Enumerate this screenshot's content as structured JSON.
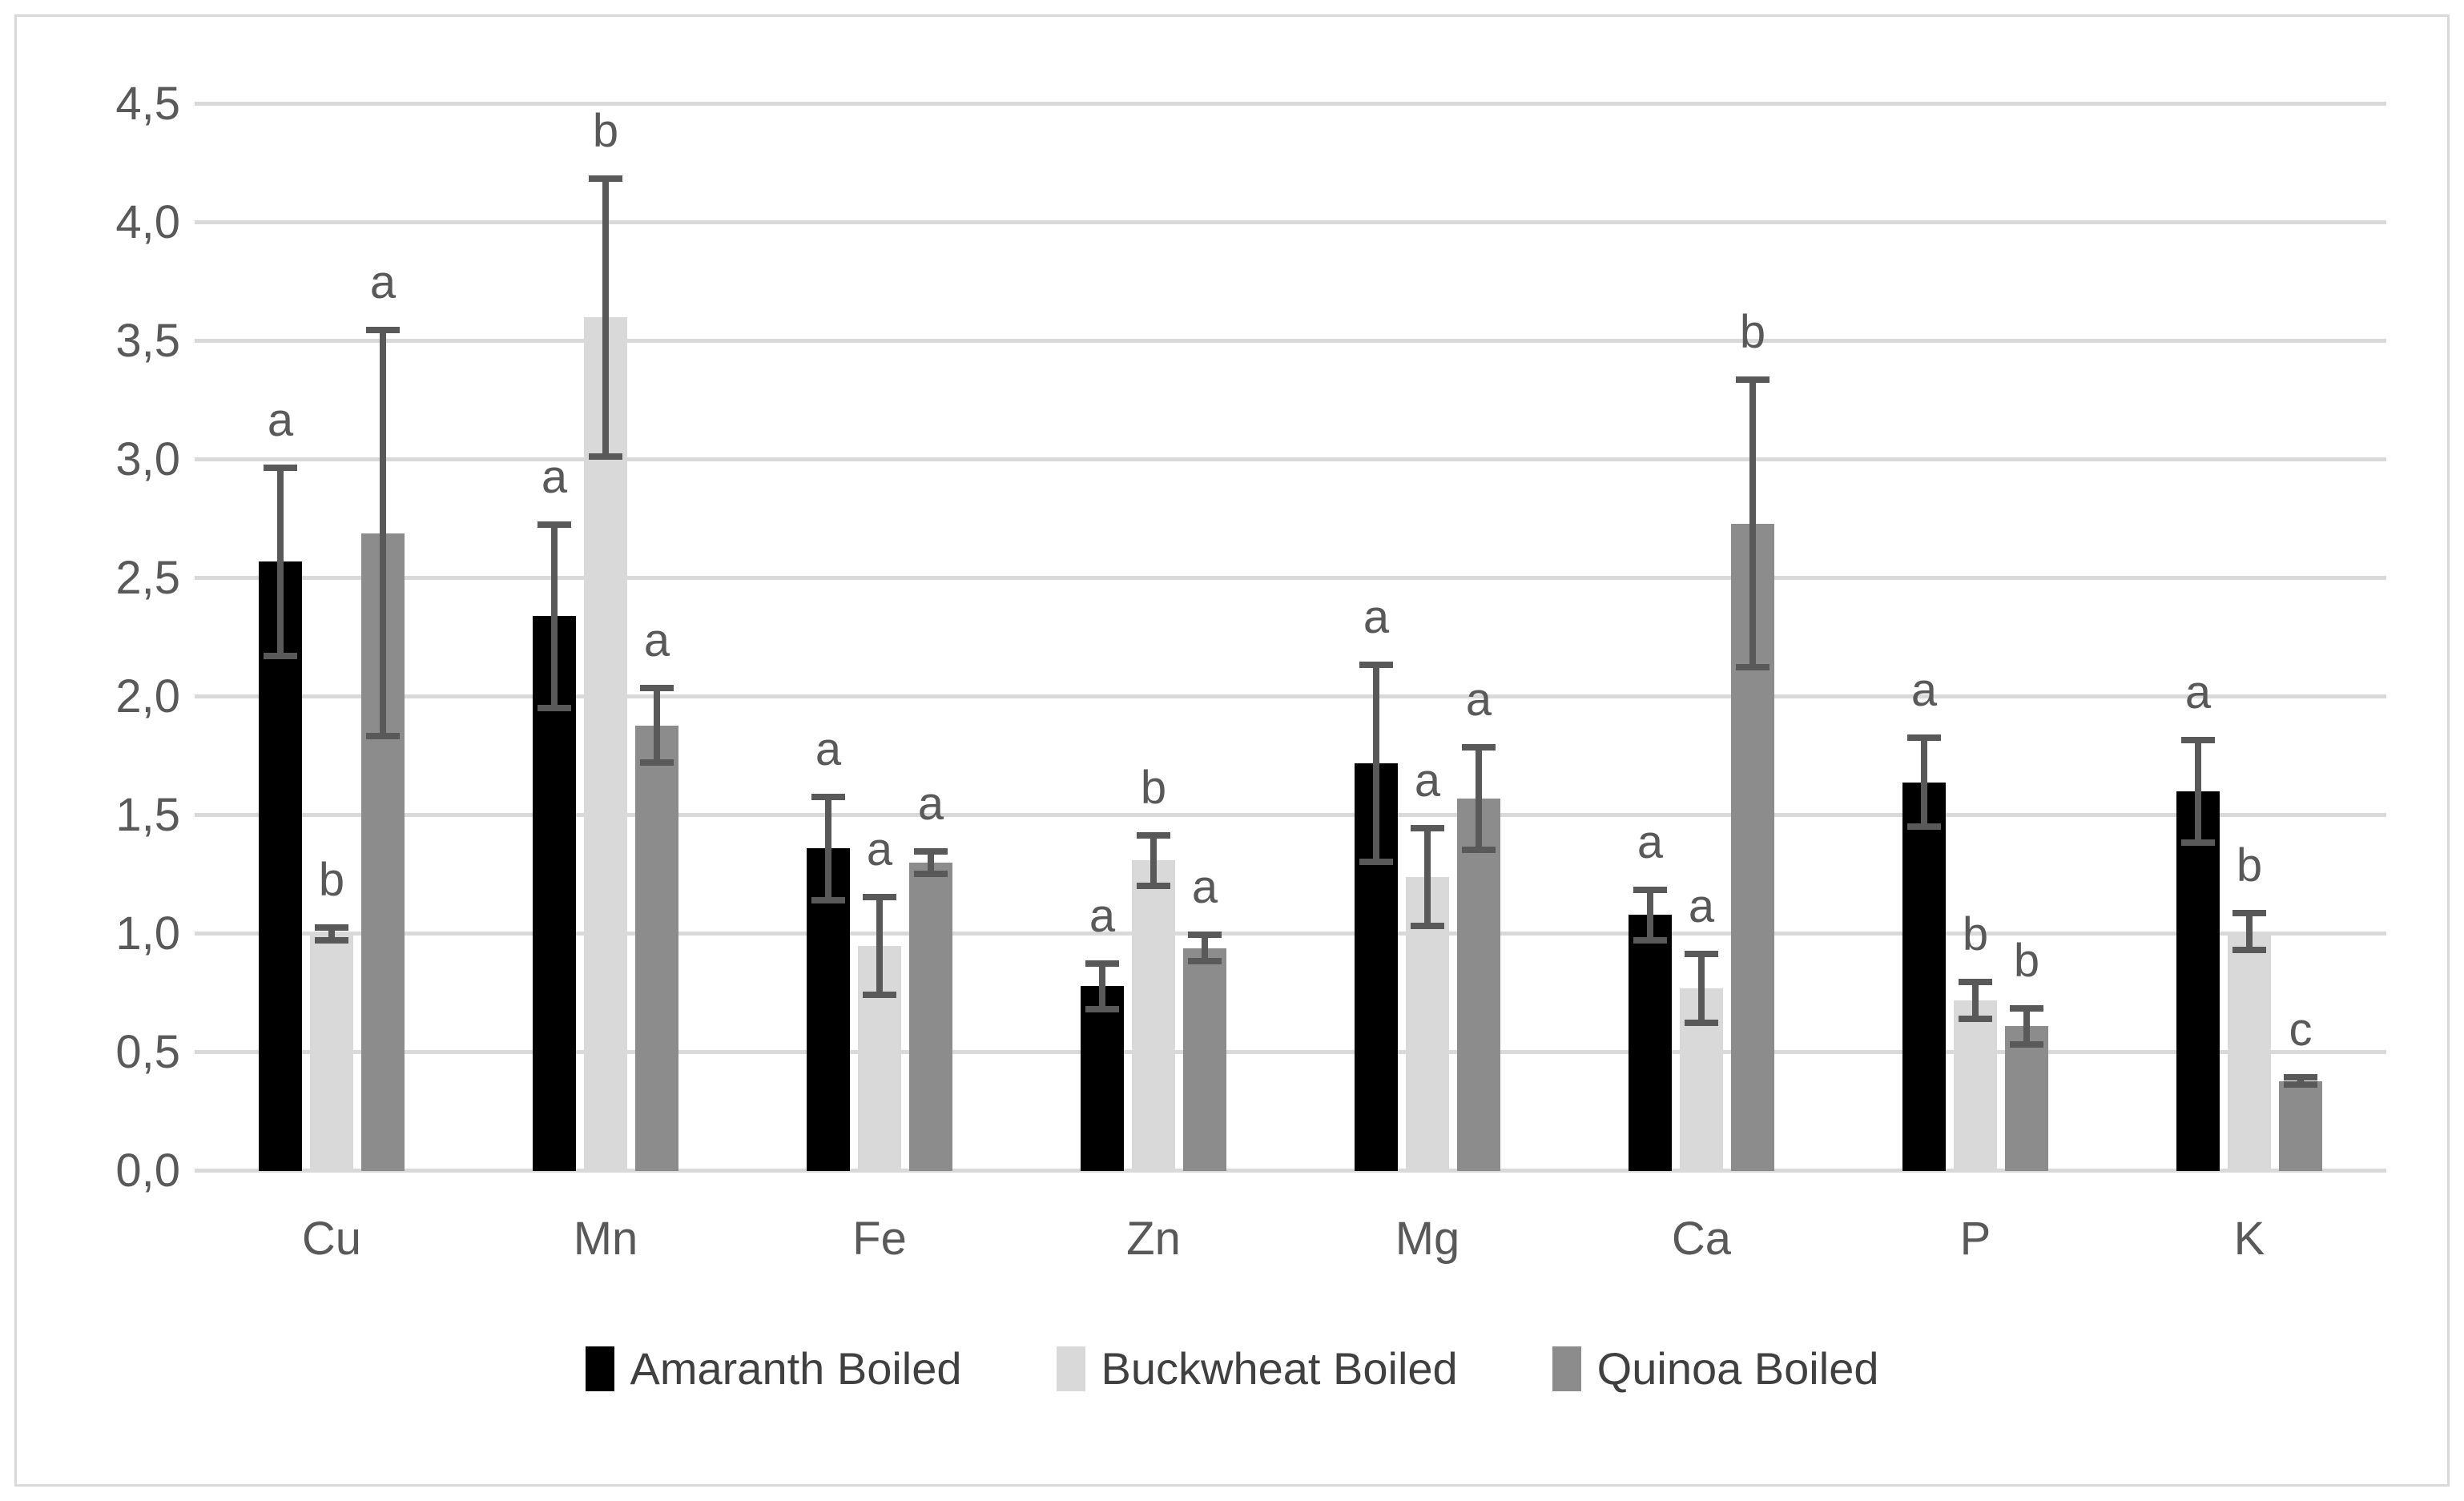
{
  "chart_data": {
    "type": "bar",
    "title": "",
    "xlabel": "",
    "ylabel": "",
    "categories": [
      "Cu",
      "Mn",
      "Fe",
      "Zn",
      "Mg",
      "Ca",
      "P",
      "K"
    ],
    "series": [
      {
        "name": "Amaranth Boiled",
        "color": "#000000",
        "values": [
          2.57,
          2.34,
          1.36,
          0.78,
          1.72,
          1.08,
          1.64,
          1.6
        ],
        "errors": [
          0.41,
          0.4,
          0.23,
          0.11,
          0.43,
          0.12,
          0.2,
          0.23
        ],
        "letters": [
          "a",
          "a",
          "a",
          "a",
          "a",
          "a",
          "a",
          "a"
        ]
      },
      {
        "name": "Buckwheat Boiled",
        "color": "#d9d9d9",
        "values": [
          1.0,
          3.6,
          0.95,
          1.31,
          1.24,
          0.77,
          0.72,
          1.01
        ],
        "errors": [
          0.04,
          0.6,
          0.22,
          0.12,
          0.22,
          0.16,
          0.09,
          0.09
        ],
        "letters": [
          "b",
          "b",
          "a",
          "b",
          "a",
          "a",
          "b",
          "b"
        ]
      },
      {
        "name": "Quinoa Boiled",
        "color": "#8c8c8c",
        "values": [
          2.69,
          1.88,
          1.3,
          0.94,
          1.57,
          2.73,
          0.61,
          0.38
        ],
        "errors": [
          0.87,
          0.17,
          0.06,
          0.07,
          0.23,
          0.62,
          0.09,
          0.03
        ],
        "letters": [
          "a",
          "a",
          "a",
          "a",
          "a",
          "b",
          "b",
          "c"
        ]
      }
    ],
    "ylim": [
      0,
      4.5
    ],
    "ytick_step": 0.5,
    "ytick_labels": [
      "0,0",
      "0,5",
      "1,0",
      "1,5",
      "2,0",
      "2,5",
      "3,0",
      "3,5",
      "4,0",
      "4,5"
    ],
    "grid": true,
    "legend_position": "bottom",
    "colors": {
      "error_bar": "#595959",
      "gridline": "#d9d9d9",
      "axis_text": "#595959",
      "letter": "#595959",
      "frame_border": "#d9d9d9",
      "background": "#ffffff"
    }
  },
  "legend": {
    "items": [
      {
        "label": "Amaranth Boiled"
      },
      {
        "label": "Buckwheat Boiled"
      },
      {
        "label": "Quinoa Boiled"
      }
    ]
  }
}
